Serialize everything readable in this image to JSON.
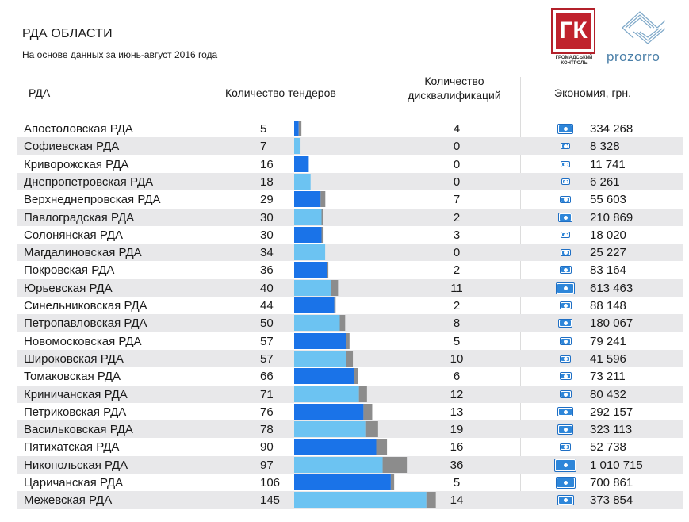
{
  "header": {
    "title": "РДА ОБЛАСТИ",
    "subtitle": "На основе данных за июнь-август 2016 года"
  },
  "logos": {
    "gk": {
      "text": "ГК",
      "caption": "ГРОМАДСЬКИЙ КОНТРОЛЬ",
      "color": "#c0222d"
    },
    "prozorro": {
      "text": "prozorro",
      "color": "#4a7fa8"
    }
  },
  "columns": {
    "name": "РДА",
    "tenders": "Количество тендеров",
    "disq_line1": "Количество",
    "disq_line2": "дисквалификаций",
    "economy": "Экономия, грн."
  },
  "colors": {
    "bar_dark": "#1a73e8",
    "bar_light": "#6cc3f2",
    "disq_gray": "#8c8c8c",
    "bill": "#2e86d9",
    "row_alt": "#e8e8ea"
  },
  "chart_data": {
    "type": "table",
    "columns": [
      "РДА",
      "Количество тендеров",
      "Количество дисквалификаций",
      "Экономия, грн."
    ],
    "rows": [
      {
        "name": "Апостоловская РДА",
        "tenders": 5,
        "tenders_label": "5",
        "disq": 4,
        "disq_label": "4",
        "economy": 334268,
        "economy_label": "334 268"
      },
      {
        "name": "Софиевская РДА",
        "tenders": 7,
        "tenders_label": "7",
        "disq": 0,
        "disq_label": "0",
        "economy": 8328,
        "economy_label": "8 328"
      },
      {
        "name": "Криворожская РДА",
        "tenders": 16,
        "tenders_label": "16",
        "disq": 0,
        "disq_label": "0",
        "economy": 11741,
        "economy_label": "11 741"
      },
      {
        "name": "Днепропетровская РДА",
        "tenders": 18,
        "tenders_label": "18",
        "disq": 0,
        "disq_label": "0",
        "economy": 6261,
        "economy_label": "6 261"
      },
      {
        "name": "Верхнеднепровская РДА",
        "tenders": 29,
        "tenders_label": "29",
        "disq": 7,
        "disq_label": "7",
        "economy": 55603,
        "economy_label": "55 603"
      },
      {
        "name": "Павлоградская РДА",
        "tenders": 30,
        "tenders_label": "30",
        "disq": 2,
        "disq_label": "2",
        "economy": 210869,
        "economy_label": "210 869"
      },
      {
        "name": "Солонянская РДА",
        "tenders": 30,
        "tenders_label": "30",
        "disq": 3,
        "disq_label": "3",
        "economy": 18020,
        "economy_label": "18 020"
      },
      {
        "name": "Магдалиновская РДА",
        "tenders": 34,
        "tenders_label": "34",
        "disq": 0,
        "disq_label": "0",
        "economy": 25227,
        "economy_label": "25 227"
      },
      {
        "name": "Покровская РДА",
        "tenders": 36,
        "tenders_label": "36",
        "disq": 2,
        "disq_label": "2",
        "economy": 83164,
        "economy_label": "83 164"
      },
      {
        "name": "Юрьевская РДА",
        "tenders": 40,
        "tenders_label": "40",
        "disq": 11,
        "disq_label": "11",
        "economy": 613463,
        "economy_label": "613 463"
      },
      {
        "name": "Синельниковская РДА",
        "tenders": 44,
        "tenders_label": "44",
        "disq": 2,
        "disq_label": "2",
        "economy": 88148,
        "economy_label": "88 148"
      },
      {
        "name": "Петропавловская РДА",
        "tenders": 50,
        "tenders_label": "50",
        "disq": 8,
        "disq_label": "8",
        "economy": 180067,
        "economy_label": "180 067"
      },
      {
        "name": "Новомосковская РДА",
        "tenders": 57,
        "tenders_label": "57",
        "disq": 5,
        "disq_label": "5",
        "economy": 79241,
        "economy_label": "79 241"
      },
      {
        "name": "Широковская РДА",
        "tenders": 57,
        "tenders_label": "57",
        "disq": 10,
        "disq_label": "10",
        "economy": 41596,
        "economy_label": "41 596"
      },
      {
        "name": "Томаковская РДА",
        "tenders": 66,
        "tenders_label": "66",
        "disq": 6,
        "disq_label": "6",
        "economy": 73211,
        "economy_label": "73 211"
      },
      {
        "name": "Криничанская РДА",
        "tenders": 71,
        "tenders_label": "71",
        "disq": 12,
        "disq_label": "12",
        "economy": 80432,
        "economy_label": "80 432"
      },
      {
        "name": "Петриковская РДА",
        "tenders": 76,
        "tenders_label": "76",
        "disq": 13,
        "disq_label": "13",
        "economy": 292157,
        "economy_label": "292 157"
      },
      {
        "name": "Васильковская РДА",
        "tenders": 78,
        "tenders_label": "78",
        "disq": 19,
        "disq_label": "19",
        "economy": 323113,
        "economy_label": "323 113"
      },
      {
        "name": "Пятихатская РДА",
        "tenders": 90,
        "tenders_label": "90",
        "disq": 16,
        "disq_label": "16",
        "economy": 52738,
        "economy_label": "52 738"
      },
      {
        "name": "Никопольская РДА",
        "tenders": 97,
        "tenders_label": "97",
        "disq": 36,
        "disq_label": "36",
        "economy": 1010715,
        "economy_label": "1 010 715"
      },
      {
        "name": "Царичанская РДА",
        "tenders": 106,
        "tenders_label": "106",
        "disq": 5,
        "disq_label": "5",
        "economy": 700861,
        "economy_label": "700 861"
      },
      {
        "name": "Межевская РДА",
        "tenders": 145,
        "tenders_label": "145",
        "disq": 14,
        "disq_label": "14",
        "economy": 373854,
        "economy_label": "373 854"
      }
    ]
  }
}
